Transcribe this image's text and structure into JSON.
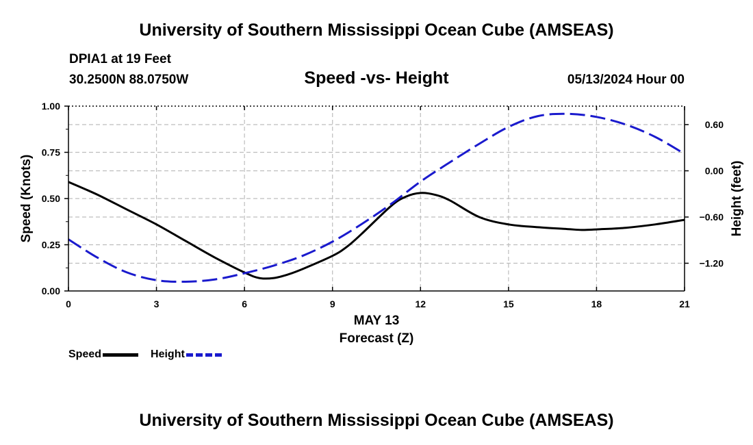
{
  "header": {
    "title": "University of Southern Mississippi Ocean Cube (AMSEAS)",
    "station": "DPIA1 at 19 Feet",
    "coords": "30.2500N  88.0750W",
    "datetime": "05/13/2024 Hour 00"
  },
  "footer": {
    "title": "University of Southern Mississippi Ocean Cube (AMSEAS)"
  },
  "legend": {
    "speed_label": "Speed",
    "height_label": "Height"
  },
  "colors": {
    "speed": "#000000",
    "height": "#1a1acd",
    "grid": "#bdbdbd"
  },
  "chart_data": {
    "type": "line",
    "title": "Speed -vs- Height",
    "xlabel_date": "MAY 13",
    "xlabel": "Forecast (Z)",
    "ylabel": "Speed (Knots)",
    "ylabel_right": "Height (feet)",
    "xlim": [
      0,
      21
    ],
    "ylim": [
      0,
      1
    ],
    "ylim_right": [
      -1.56,
      0.84
    ],
    "x_ticks": [
      0,
      3,
      6,
      9,
      12,
      15,
      18,
      21
    ],
    "x_tick_labels": [
      "0",
      "3",
      "6",
      "9",
      "12",
      "15",
      "18",
      "21"
    ],
    "y_ticks": [
      0,
      0.25,
      0.5,
      0.75,
      1.0
    ],
    "y_tick_labels": [
      "0.00",
      "0.25",
      "0.50",
      "0.75",
      "1.00"
    ],
    "y_right_ticks": [
      -1.2,
      -0.6,
      0.0,
      0.6
    ],
    "y_right_tick_labels": [
      "−1.20",
      "−0.60",
      "0.00",
      "0.60"
    ],
    "grid": true,
    "series": [
      {
        "name": "Speed",
        "axis": "left",
        "style": "solid",
        "x": [
          0,
          1,
          2,
          3,
          4,
          5,
          6,
          6.5,
          7,
          7.5,
          8,
          9,
          9.5,
          10,
          11,
          11.5,
          12,
          12.5,
          13,
          14,
          15,
          16,
          17,
          17.5,
          18,
          19,
          20,
          21
        ],
        "values": [
          0.59,
          0.52,
          0.44,
          0.36,
          0.27,
          0.18,
          0.1,
          0.07,
          0.07,
          0.09,
          0.12,
          0.19,
          0.24,
          0.31,
          0.46,
          0.51,
          0.53,
          0.52,
          0.49,
          0.4,
          0.36,
          0.345,
          0.335,
          0.33,
          0.333,
          0.342,
          0.36,
          0.385
        ]
      },
      {
        "name": "Height",
        "axis": "right",
        "style": "dashed",
        "x": [
          0,
          1,
          2,
          3,
          4,
          5,
          6,
          7,
          8,
          9,
          10,
          11,
          12,
          13,
          14,
          15,
          16,
          17,
          18,
          19,
          20,
          21
        ],
        "values": [
          -0.89,
          -1.13,
          -1.32,
          -1.42,
          -1.44,
          -1.41,
          -1.33,
          -1.23,
          -1.1,
          -0.92,
          -0.69,
          -0.43,
          -0.14,
          0.11,
          0.35,
          0.57,
          0.71,
          0.74,
          0.7,
          0.6,
          0.44,
          0.22
        ]
      }
    ]
  }
}
